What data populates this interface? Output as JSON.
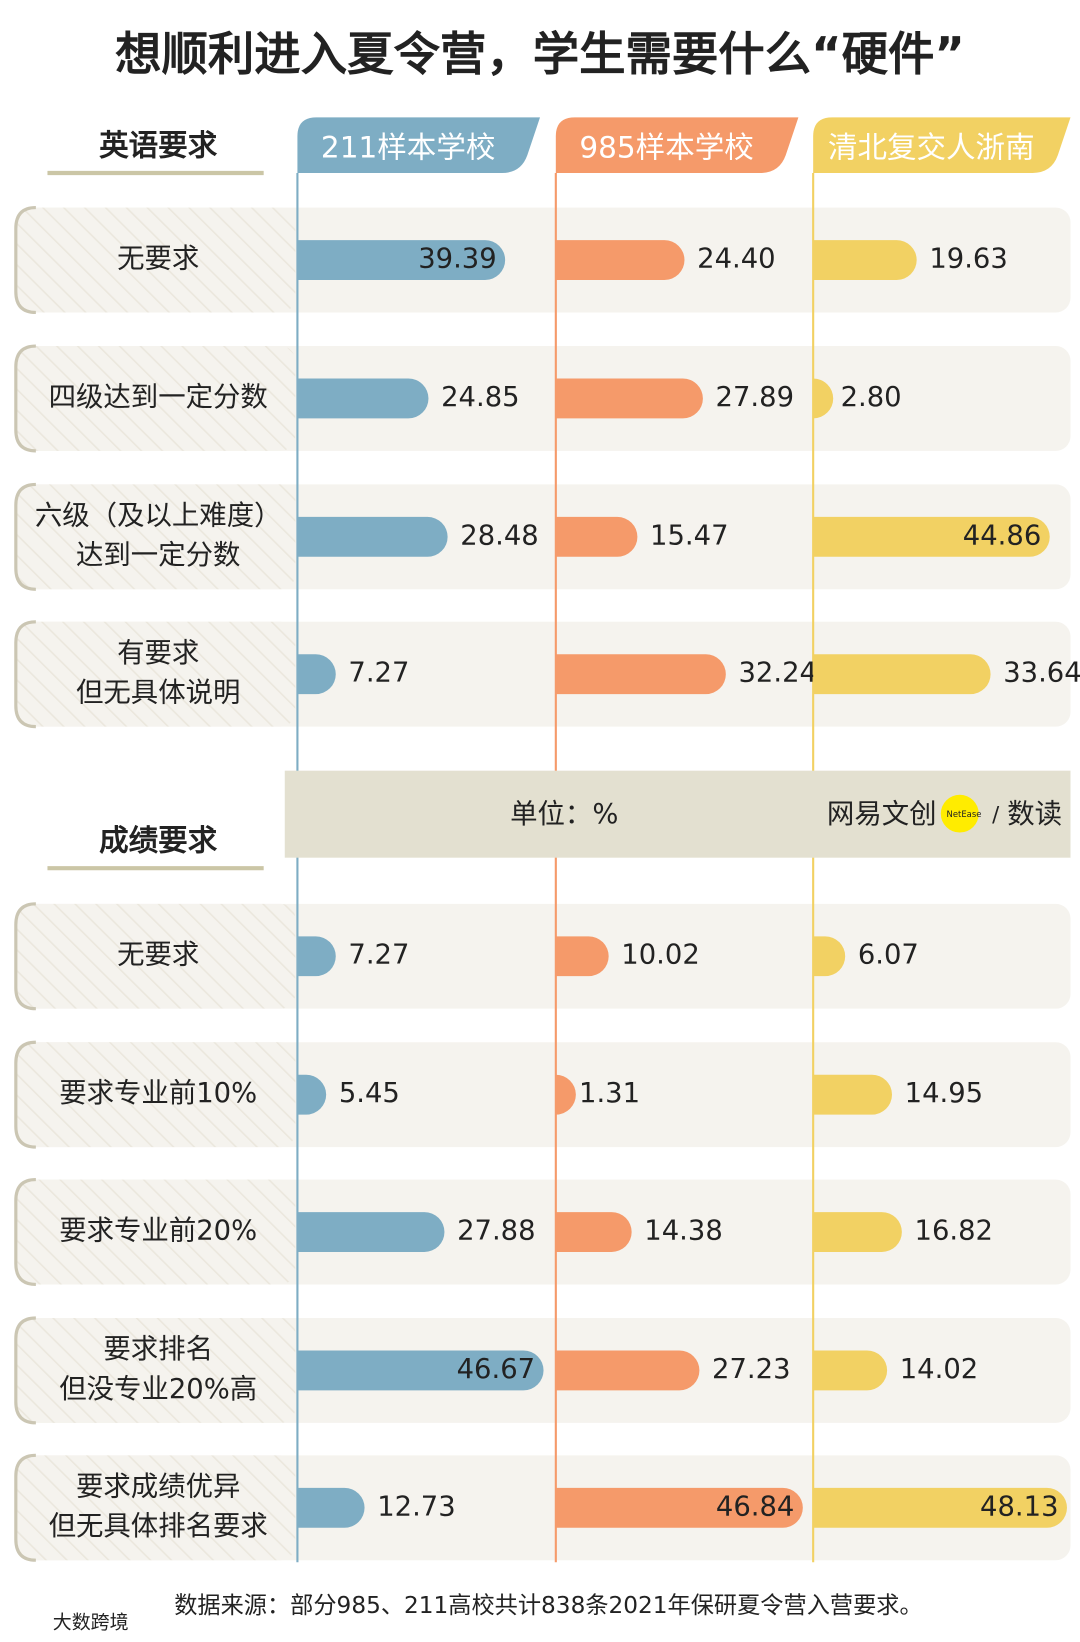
{
  "chart_data": {
    "type": "bar",
    "title": "想顺利进入夏令营，学生需要什么“硬件”",
    "xlim": [
      0,
      50
    ],
    "columns": [
      {
        "name": "211样本学校",
        "color": "#7eadc4"
      },
      {
        "name": "985样本学校",
        "color": "#f59a6a"
      },
      {
        "name": "清北复交人浙南",
        "color": "#f2d163"
      }
    ],
    "sections": [
      {
        "title": "英语要求",
        "categories": [
          [
            "无要求"
          ],
          [
            "四级达到一定分数"
          ],
          [
            "六级（及以上难度）",
            "达到一定分数"
          ],
          [
            "有要求",
            "但无具体说明"
          ]
        ],
        "series": [
          {
            "values": [
              39.39,
              24.85,
              28.48,
              7.27
            ],
            "value_labels": [
              "39.39",
              "24.85",
              "28.48",
              "7.27"
            ]
          },
          {
            "values": [
              24.4,
              27.89,
              15.47,
              32.24
            ],
            "value_labels": [
              "24.40",
              "27.89",
              "15.47",
              "32.24"
            ]
          },
          {
            "values": [
              19.63,
              2.8,
              44.86,
              33.64
            ],
            "value_labels": [
              "19.63",
              "2.80",
              "44.86",
              "33.64"
            ]
          }
        ]
      },
      {
        "title": "成绩要求",
        "categories": [
          [
            "无要求"
          ],
          [
            "要求专业前10%"
          ],
          [
            "要求专业前20%"
          ],
          [
            "要求排名",
            "但没专业20%高"
          ],
          [
            "要求成绩优异",
            "但无具体排名要求"
          ]
        ],
        "series": [
          {
            "values": [
              7.27,
              5.45,
              27.88,
              46.67,
              12.73
            ],
            "value_labels": [
              "7.27",
              "5.45",
              "27.88",
              "46.67",
              "12.73"
            ]
          },
          {
            "values": [
              10.02,
              1.31,
              14.38,
              27.23,
              46.84
            ],
            "value_labels": [
              "10.02",
              "1.31",
              "14.38",
              "27.23",
              "46.84"
            ]
          },
          {
            "values": [
              6.07,
              14.95,
              16.82,
              14.02,
              48.13
            ],
            "value_labels": [
              "6.07",
              "14.95",
              "16.82",
              "14.02",
              "48.13"
            ]
          }
        ]
      }
    ],
    "unit": "单位：%",
    "brand": "网易文创",
    "brand_logo": "NetEase",
    "brand_sep": "/",
    "brand_2": "数读",
    "source": "数据来源：部分985、211高校共计838条2021年保研夏令营入营要求。",
    "watermark": "大数跨境"
  }
}
